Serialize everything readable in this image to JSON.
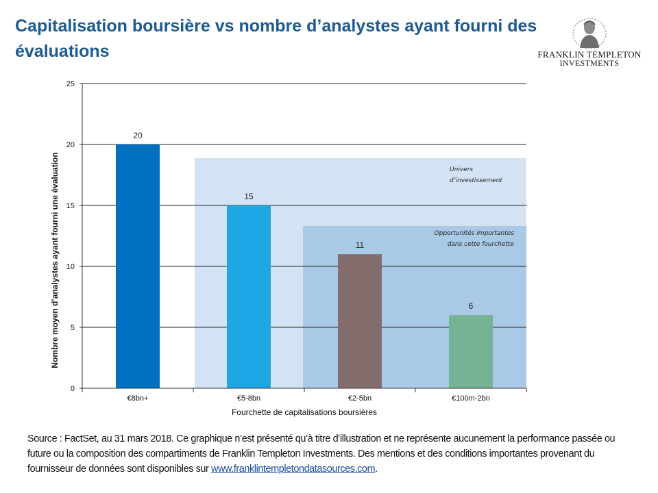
{
  "header": {
    "title": "Capitalisation boursière vs nombre d’analystes ayant fourni des évaluations",
    "logo_line1": "FRANKLIN TEMPLETON",
    "logo_line2": "INVESTMENTS"
  },
  "chart_data": {
    "type": "bar",
    "title": "Capitalisation boursière vs nombre d’analystes ayant fourni des évaluations",
    "xlabel": "Fourchette de capitalisations boursières",
    "ylabel": "Nombre moyen d’analystes ayant fourni une évaluation",
    "categories": [
      "€8bn+",
      "€5-8bn",
      "€2-5bn",
      "€100m-2bn"
    ],
    "values": [
      20,
      15,
      11,
      6
    ],
    "value_labels": [
      "20",
      "15",
      "11",
      "6"
    ],
    "bar_colors": [
      "#0070c0",
      "#1ea7e4",
      "#846c6c",
      "#74b494"
    ],
    "ylim": [
      0,
      25
    ],
    "yticks": [
      0,
      5,
      10,
      15,
      20,
      25
    ],
    "grid": true,
    "annotations": [
      {
        "text": "Univers d’investissement",
        "spans_categories": [
          "€5-8bn",
          "€2-5bn",
          "€100m-2bn"
        ],
        "color": "#d3e3f3"
      },
      {
        "text": "Opportunités importantes dans cette fourchette",
        "spans_categories": [
          "€2-5bn",
          "€100m-2bn"
        ],
        "color": "#a9c9e7"
      }
    ]
  },
  "callouts": {
    "univers": "Univers d’investissement",
    "opportunites": "Opportunités importantes dans cette fourchette"
  },
  "footer": {
    "source_text": "Source : FactSet, au 31 mars 2018. Ce graphique n’est présenté qu’à titre  d’illustration  et ne représente aucunement la performance passée ou future ou la composition des compartiments de Franklin Templeton Investments.  Des mentions et des conditions importantes provenant du fournisseur de données sont disponibles sur ",
    "source_link": "www.franklintempletondatasources.com",
    "source_end": "."
  }
}
